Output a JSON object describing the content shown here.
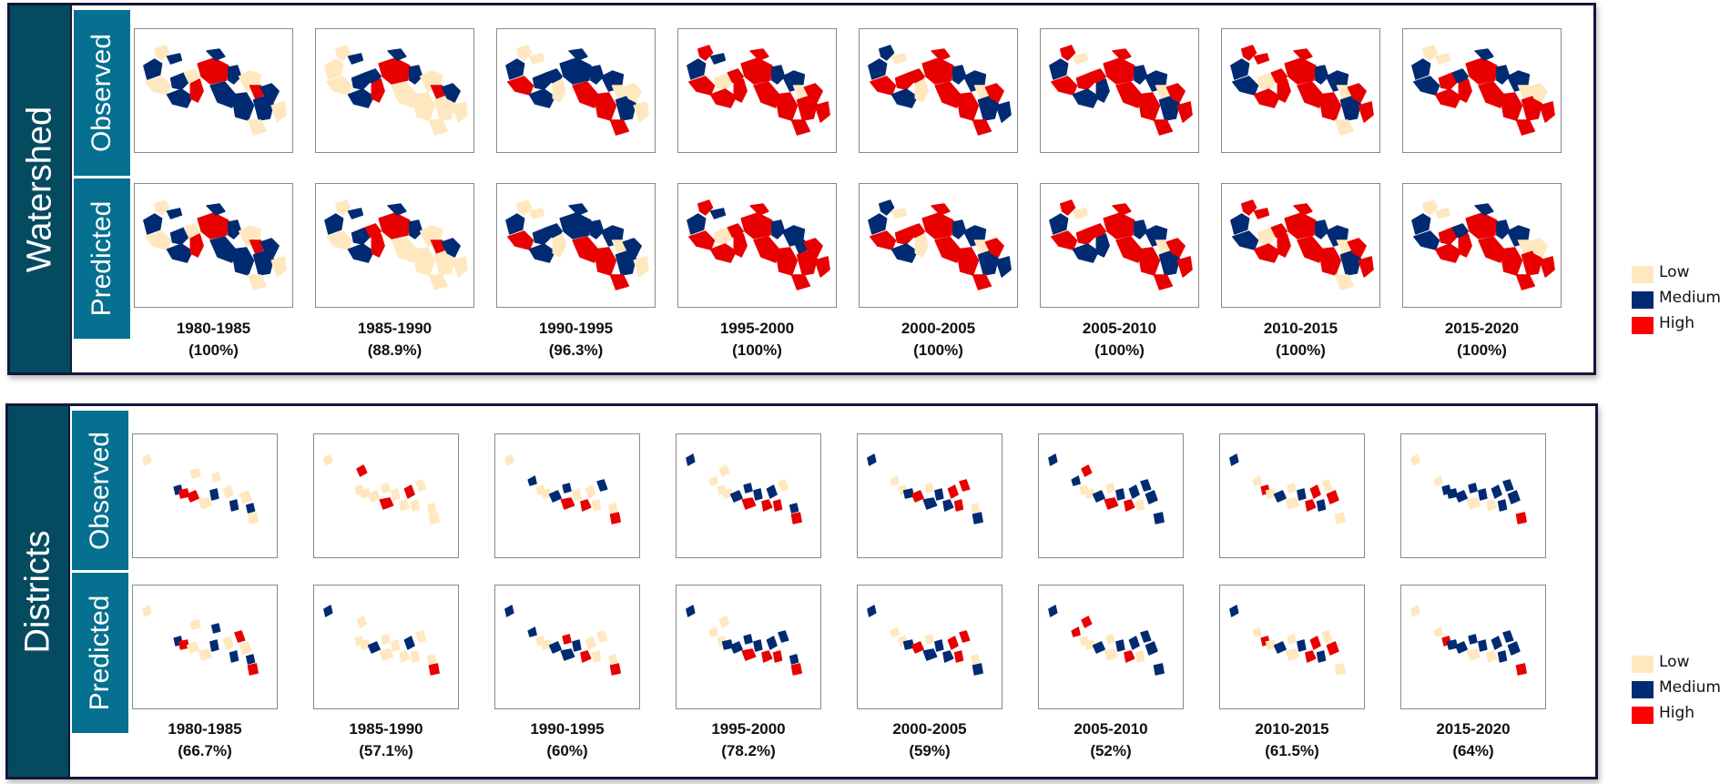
{
  "colors": {
    "low": "#FFE8BF",
    "medium": "#002B72",
    "high": "#E80000",
    "legend_high": "#FF0000"
  },
  "legend": [
    {
      "label": "Low",
      "key": "low"
    },
    {
      "label": "Medium",
      "key": "medium"
    },
    {
      "label": "High",
      "key": "high"
    }
  ],
  "row_labels": {
    "observed": "Observed",
    "predicted": "Predicted"
  },
  "panels": [
    {
      "title": "Watershed",
      "periods": [
        {
          "label": "1980-1985",
          "accuracy": "(100%)",
          "observed": "MLMLMMLHHMMLHMMMMLL",
          "predicted": "MLMLMMLHHMMLHMMMMLL"
        },
        {
          "label": "1985-1990",
          "accuracy": "(88.9%)",
          "observed": "LLMLMMMHHMMLHLLLMLL",
          "predicted": "MLMLMMHHHMMLHLLLMLL"
        },
        {
          "label": "1990-1995",
          "accuracy": "(96.3%)",
          "observed": "MLLHMMMLMMMMLHHMLHL",
          "predicted": "MLLHMMMLMMMMLHHMMHL"
        },
        {
          "label": "1995-2000",
          "accuracy": "(100%)",
          "observed": "MHMHLHHHHHMMLHHHHHH",
          "predicted": "MHMHLHHHHHMMMHHHHHH"
        },
        {
          "label": "2000-2005",
          "accuracy": "(100%)",
          "observed": "MMLHHMHLHHMMLHHMHHM",
          "predicted": "MMLHHMHLHHMMLHHMHHM"
        },
        {
          "label": "2005-2010",
          "accuracy": "(100%)",
          "observed": "MHLHHMHMHHMMLHHMHHH",
          "predicted": "MHLHHMHMHHMMLHHMHHH"
        },
        {
          "label": "2010-2015",
          "accuracy": "(100%)",
          "observed": "MHHMLHHHHHMMLHHMHLH",
          "predicted": "MHHMLHHHHHMMLHHMHLH"
        },
        {
          "label": "2015-2020",
          "accuracy": "(100%)",
          "observed": "MLLMHHMHHMMMLHHHLHH",
          "predicted": "MLLMHHMHHMMMLHHHLHH"
        }
      ]
    },
    {
      "title": "Districts",
      "periods": [
        {
          "label": "1980-1985",
          "accuracy": "(66.7%)",
          "observed": "L--MHLHL-ML-LM-LML",
          "predicted": "L--MHLLL-MM-LMHLMH"
        },
        {
          "label": "1985-1990",
          "accuracy": "(57.1%)",
          "observed": "L-HLL-LHLL-LHLL-LL",
          "predicted": "M-LLL-MLLL-LMLL-LH"
        },
        {
          "label": "1990-1995",
          "accuracy": "(60%)",
          "observed": "LM-LL-MHML-HLLM-LH",
          "predicted": "MM-LL-MMHM-HLLL-LH"
        },
        {
          "label": "1995-2000",
          "accuracy": "(78.2%)",
          "observed": "MLLLL-MHMM-HMHL-MH",
          "predicted": "MLLLM-MHMM-HMHM-MH"
        },
        {
          "label": "2000-2005",
          "accuracy": "(59%)",
          "observed": "ML-LM-HMLM-MHHH-LM",
          "predicted": "ML-LM-HMLM-MHHH-LM"
        },
        {
          "label": "2005-2010",
          "accuracy": "(52%)",
          "observed": "MMHLL-MHLM-HMLMM-M",
          "predicted": "MHHLL-MLLM-HMLMM-M"
        },
        {
          "label": "2010-2015",
          "accuracy": "(61.5%)",
          "observed": "ML-HL-MLLM-HHMLH-L",
          "predicted": "ML-HL-MLLM-HHMLH-L"
        },
        {
          "label": "2015-2020",
          "accuracy": "(64%)",
          "observed": "LL-MM-MLMM-LMMMM-H",
          "predicted": "LL-HM-MLMM-LMMMM-H"
        }
      ]
    }
  ]
}
